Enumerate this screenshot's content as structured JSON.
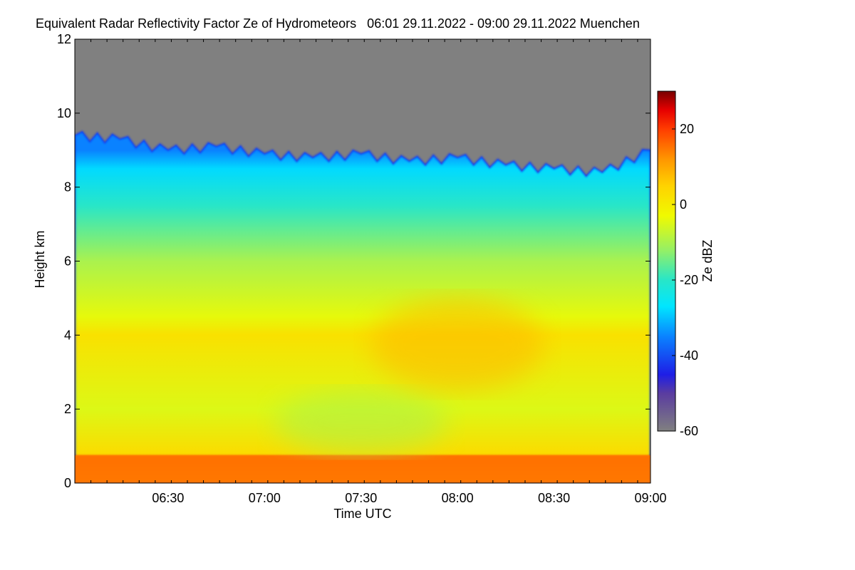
{
  "chart_data": {
    "type": "heatmap",
    "title": "Equivalent Radar Reflectivity Factor Ze of Hydrometeors   06:01 29.11.2022 - 09:00 29.11.2022 Muenchen",
    "xlabel": "Time UTC",
    "ylabel": "Height km",
    "colorbar_label": "Ze dBZ",
    "xlim": [
      "06:01",
      "09:00"
    ],
    "ylim": [
      0,
      12
    ],
    "clim": [
      -60,
      30
    ],
    "x_ticks": [
      "06:30",
      "07:00",
      "07:30",
      "08:00",
      "08:30",
      "09:00"
    ],
    "y_ticks": [
      0,
      2,
      4,
      6,
      8,
      10,
      12
    ],
    "colorbar_ticks": [
      -60,
      -40,
      -20,
      0,
      20
    ],
    "no_echo_color": "#808080",
    "colorscale": [
      {
        "value": -60,
        "color": "#808080"
      },
      {
        "value": -50,
        "color": "#5a3ca0"
      },
      {
        "value": -45,
        "color": "#1e1ee6"
      },
      {
        "value": -35,
        "color": "#0a82ff"
      },
      {
        "value": -27,
        "color": "#00e6ff"
      },
      {
        "value": -20,
        "color": "#28e6c8"
      },
      {
        "value": -12,
        "color": "#96f064"
      },
      {
        "value": -3,
        "color": "#f0fa00"
      },
      {
        "value": 5,
        "color": "#ffd200"
      },
      {
        "value": 12,
        "color": "#ff9600"
      },
      {
        "value": 20,
        "color": "#ff3c00"
      },
      {
        "value": 25,
        "color": "#e60000"
      },
      {
        "value": 30,
        "color": "#780000"
      }
    ],
    "layers": [
      {
        "height_km": 0.0,
        "ze_dbz": 13
      },
      {
        "height_km": 0.7,
        "ze_dbz": 17
      },
      {
        "height_km": 0.8,
        "ze_dbz": 3
      },
      {
        "height_km": 2.0,
        "ze_dbz": -5
      },
      {
        "height_km": 4.0,
        "ze_dbz": 2
      },
      {
        "height_km": 4.5,
        "ze_dbz": -4
      },
      {
        "height_km": 6.0,
        "ze_dbz": -10
      },
      {
        "height_km": 7.5,
        "ze_dbz": -20
      },
      {
        "height_km": 8.5,
        "ze_dbz": -28
      },
      {
        "height_km": 9.0,
        "ze_dbz": -35
      }
    ],
    "cloud_top_km": [
      {
        "time": "06:01",
        "top": 9.4
      },
      {
        "time": "06:15",
        "top": 9.3
      },
      {
        "time": "06:30",
        "top": 9.0
      },
      {
        "time": "06:45",
        "top": 9.1
      },
      {
        "time": "07:00",
        "top": 8.9
      },
      {
        "time": "07:15",
        "top": 8.8
      },
      {
        "time": "07:30",
        "top": 8.9
      },
      {
        "time": "07:45",
        "top": 8.7
      },
      {
        "time": "08:00",
        "top": 8.8
      },
      {
        "time": "08:15",
        "top": 8.6
      },
      {
        "time": "08:30",
        "top": 8.5
      },
      {
        "time": "08:45",
        "top": 8.4
      },
      {
        "time": "09:00",
        "top": 9.0
      }
    ],
    "features": [
      {
        "name": "ground-bright-band",
        "from_km": 0.0,
        "to_km": 0.75,
        "ze_dbz": 15
      },
      {
        "name": "weak-echo-patch",
        "time": "07:30",
        "from_km": 0.8,
        "to_km": 2.5,
        "ze_dbz": -10
      },
      {
        "name": "enhanced-echo-band",
        "time": "08:00",
        "from_km": 2.5,
        "to_km": 5.0,
        "ze_dbz": 8
      }
    ]
  }
}
